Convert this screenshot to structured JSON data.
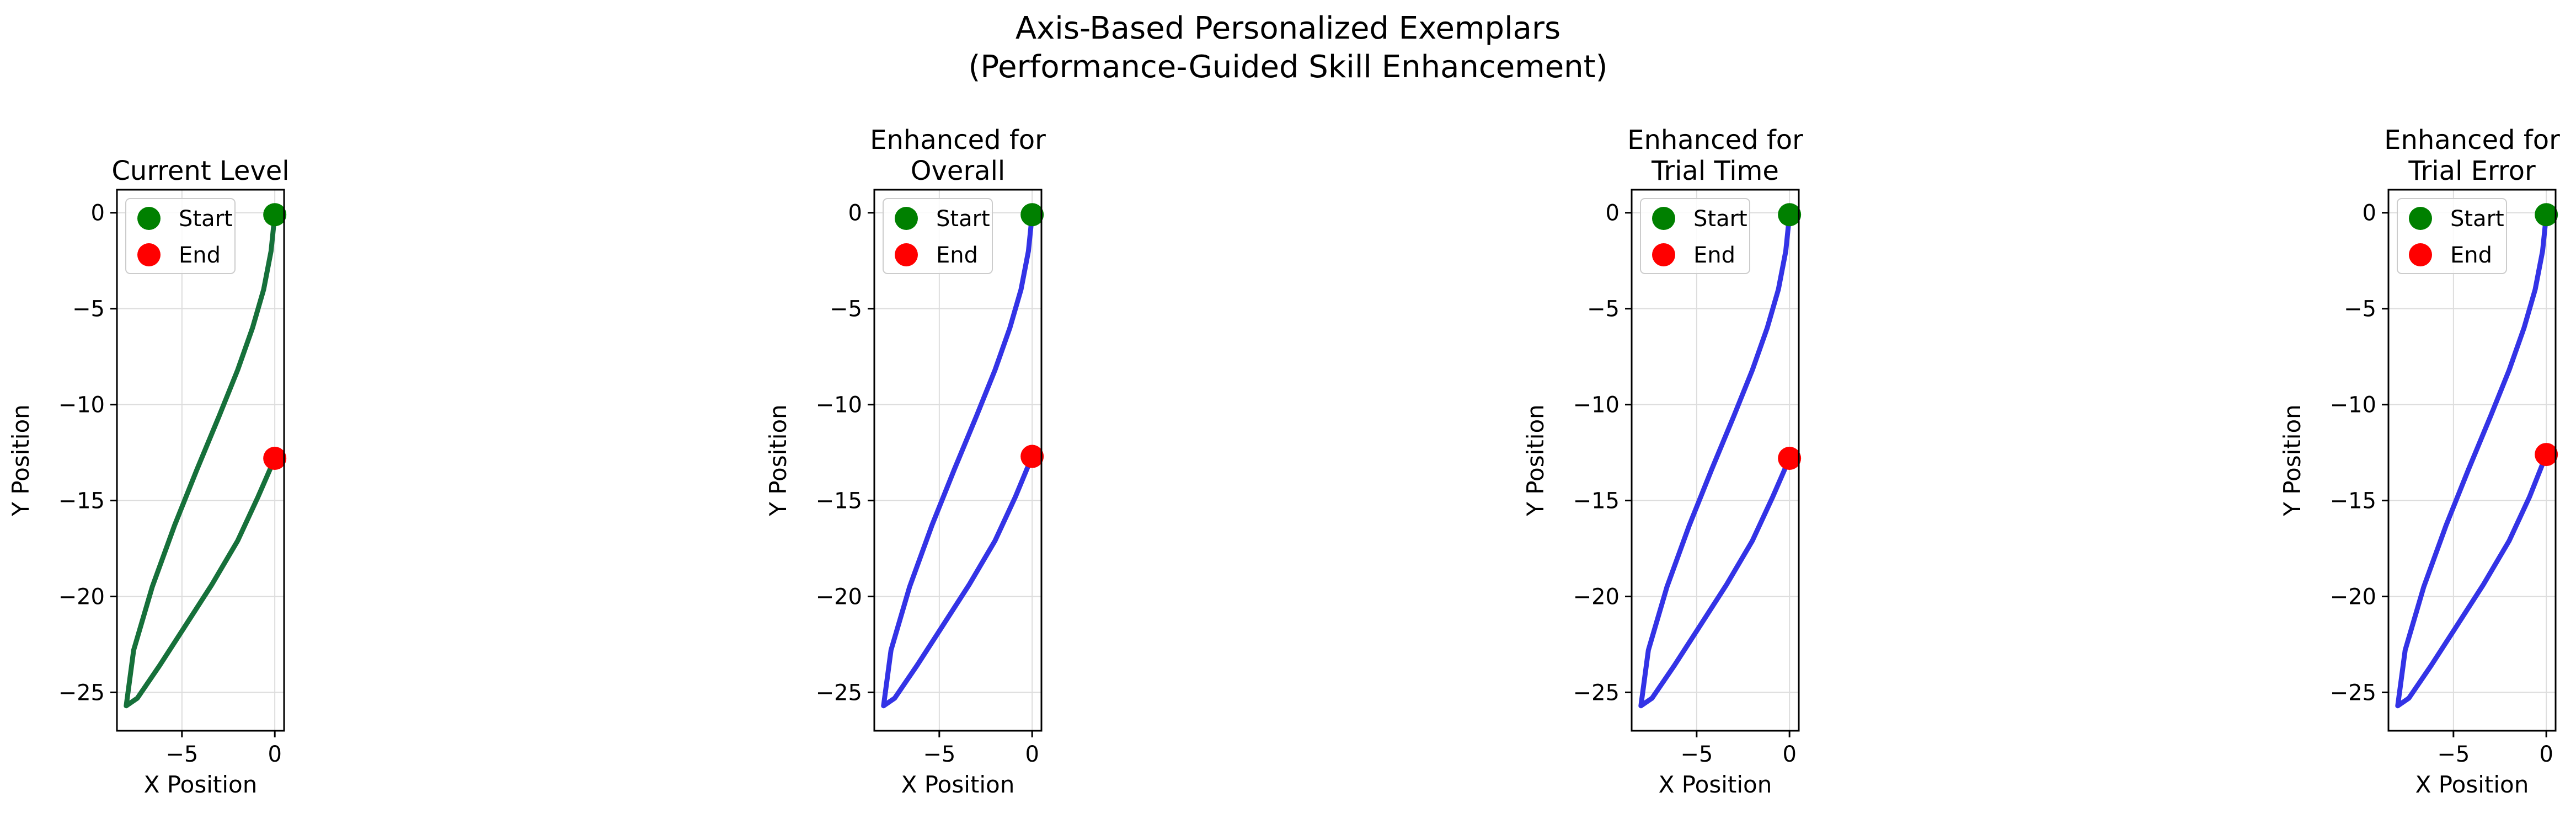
{
  "figure": {
    "title_line1": "Axis-Based Personalized Exemplars",
    "title_line2": "(Performance-Guided Skill Enhancement)"
  },
  "chart_data": [
    {
      "type": "line",
      "title_lines": [
        "Current Level"
      ],
      "xlabel": "X Position",
      "ylabel": "Y Position",
      "xlim": [
        -8.5,
        0.5
      ],
      "ylim": [
        -27.0,
        1.2
      ],
      "xticks": [
        -5,
        0
      ],
      "yticks": [
        0,
        -5,
        -10,
        -15,
        -20,
        -25
      ],
      "line_color": "#16703a",
      "grid": true,
      "legend_position": "upper-left",
      "legend": [
        "Start",
        "End"
      ],
      "start_point": {
        "x": 0.0,
        "y": -0.1,
        "color": "#008000"
      },
      "end_point": {
        "x": 0.0,
        "y": -12.8,
        "color": "#ff0000"
      },
      "series": [
        {
          "x": [
            0.0,
            -0.2,
            -0.6,
            -1.2,
            -2.0,
            -3.0,
            -4.2,
            -5.4,
            -6.6,
            -7.6,
            -8.0,
            -7.4,
            -6.2,
            -4.8,
            -3.4,
            -2.0,
            -0.9,
            0.0
          ],
          "y": [
            -0.1,
            -2.0,
            -4.0,
            -6.0,
            -8.2,
            -10.6,
            -13.4,
            -16.3,
            -19.5,
            -22.8,
            -25.7,
            -25.3,
            -23.6,
            -21.5,
            -19.4,
            -17.1,
            -14.8,
            -12.8
          ]
        }
      ]
    },
    {
      "type": "line",
      "title_lines": [
        "Enhanced for",
        "Overall"
      ],
      "xlabel": "X Position",
      "ylabel": "Y Position",
      "xlim": [
        -8.5,
        0.5
      ],
      "ylim": [
        -27.0,
        1.2
      ],
      "xticks": [
        -5,
        0
      ],
      "yticks": [
        0,
        -5,
        -10,
        -15,
        -20,
        -25
      ],
      "line_color": "#3333e6",
      "grid": true,
      "legend_position": "upper-left",
      "legend": [
        "Start",
        "End"
      ],
      "start_point": {
        "x": 0.0,
        "y": -0.1,
        "color": "#008000"
      },
      "end_point": {
        "x": 0.0,
        "y": -12.7,
        "color": "#ff0000"
      },
      "series": [
        {
          "x": [
            0.0,
            -0.2,
            -0.6,
            -1.2,
            -2.0,
            -3.0,
            -4.2,
            -5.4,
            -6.6,
            -7.6,
            -8.0,
            -7.4,
            -6.2,
            -4.8,
            -3.4,
            -2.0,
            -0.9,
            0.0
          ],
          "y": [
            -0.1,
            -2.0,
            -4.0,
            -6.0,
            -8.2,
            -10.6,
            -13.4,
            -16.3,
            -19.5,
            -22.8,
            -25.7,
            -25.3,
            -23.6,
            -21.5,
            -19.4,
            -17.1,
            -14.8,
            -12.7
          ]
        }
      ]
    },
    {
      "type": "line",
      "title_lines": [
        "Enhanced for",
        "Trial Time"
      ],
      "xlabel": "X Position",
      "ylabel": "Y Position",
      "xlim": [
        -8.5,
        0.5
      ],
      "ylim": [
        -27.0,
        1.2
      ],
      "xticks": [
        -5,
        0
      ],
      "yticks": [
        0,
        -5,
        -10,
        -15,
        -20,
        -25
      ],
      "line_color": "#3333e6",
      "grid": true,
      "legend_position": "upper-left",
      "legend": [
        "Start",
        "End"
      ],
      "start_point": {
        "x": 0.0,
        "y": -0.1,
        "color": "#008000"
      },
      "end_point": {
        "x": 0.0,
        "y": -12.8,
        "color": "#ff0000"
      },
      "series": [
        {
          "x": [
            0.0,
            -0.2,
            -0.6,
            -1.2,
            -2.0,
            -3.0,
            -4.2,
            -5.4,
            -6.6,
            -7.6,
            -8.0,
            -7.4,
            -6.2,
            -4.8,
            -3.4,
            -2.0,
            -0.9,
            0.0
          ],
          "y": [
            -0.1,
            -2.0,
            -4.0,
            -6.0,
            -8.2,
            -10.6,
            -13.4,
            -16.3,
            -19.5,
            -22.8,
            -25.7,
            -25.3,
            -23.6,
            -21.5,
            -19.4,
            -17.1,
            -14.8,
            -12.8
          ]
        }
      ]
    },
    {
      "type": "line",
      "title_lines": [
        "Enhanced for",
        "Trial Error"
      ],
      "xlabel": "X Position",
      "ylabel": "Y Position",
      "xlim": [
        -8.5,
        0.5
      ],
      "ylim": [
        -27.0,
        1.2
      ],
      "xticks": [
        -5,
        0
      ],
      "yticks": [
        0,
        -5,
        -10,
        -15,
        -20,
        -25
      ],
      "line_color": "#3333e6",
      "grid": true,
      "legend_position": "upper-left",
      "legend": [
        "Start",
        "End"
      ],
      "start_point": {
        "x": 0.0,
        "y": -0.1,
        "color": "#008000"
      },
      "end_point": {
        "x": 0.0,
        "y": -12.6,
        "color": "#ff0000"
      },
      "series": [
        {
          "x": [
            0.0,
            -0.2,
            -0.6,
            -1.2,
            -2.0,
            -3.0,
            -4.2,
            -5.4,
            -6.6,
            -7.6,
            -8.0,
            -7.4,
            -6.2,
            -4.8,
            -3.4,
            -2.0,
            -0.9,
            0.0
          ],
          "y": [
            -0.1,
            -2.0,
            -4.0,
            -6.0,
            -8.2,
            -10.6,
            -13.4,
            -16.3,
            -19.5,
            -22.8,
            -25.7,
            -25.3,
            -23.6,
            -21.5,
            -19.4,
            -17.1,
            -14.8,
            -12.6
          ]
        }
      ]
    }
  ]
}
